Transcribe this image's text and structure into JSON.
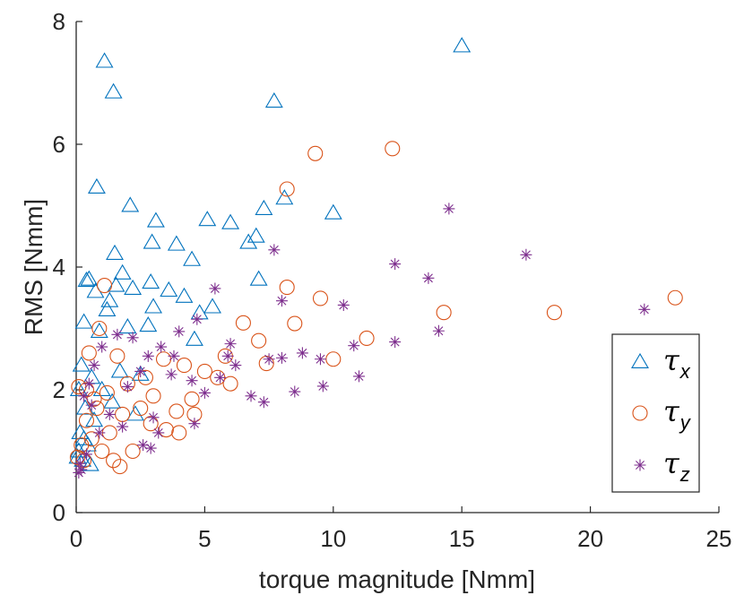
{
  "chart_data": {
    "type": "scatter",
    "title": "",
    "xlabel": "torque magnitude [Nmm]",
    "ylabel": "RMS [Nmm]",
    "xlim": [
      0,
      25
    ],
    "ylim": [
      0,
      8
    ],
    "xticks": [
      0,
      5,
      10,
      15,
      20,
      25
    ],
    "yticks": [
      0,
      2,
      4,
      6,
      8
    ],
    "xtick_labels": [
      "0",
      "5",
      "10",
      "15",
      "20",
      "25"
    ],
    "ytick_labels": [
      "0",
      "2",
      "4",
      "6",
      "8"
    ],
    "grid": false,
    "legend_position": "bottom-right",
    "series": [
      {
        "name": "τx",
        "symbol": "τ",
        "subscript": "x",
        "marker": "triangle",
        "color": "#0072BD",
        "points": [
          [
            15.0,
            7.6
          ],
          [
            1.1,
            7.35
          ],
          [
            1.45,
            6.85
          ],
          [
            7.7,
            6.7
          ],
          [
            0.8,
            5.3
          ],
          [
            2.1,
            5.0
          ],
          [
            8.1,
            5.12
          ],
          [
            10.0,
            4.88
          ],
          [
            7.3,
            4.95
          ],
          [
            3.1,
            4.75
          ],
          [
            5.1,
            4.77
          ],
          [
            6.0,
            4.72
          ],
          [
            7.0,
            4.5
          ],
          [
            6.7,
            4.4
          ],
          [
            2.95,
            4.4
          ],
          [
            3.9,
            4.37
          ],
          [
            1.5,
            4.22
          ],
          [
            4.5,
            4.12
          ],
          [
            1.8,
            3.9
          ],
          [
            0.5,
            3.8
          ],
          [
            0.4,
            3.78
          ],
          [
            2.9,
            3.75
          ],
          [
            1.55,
            3.7
          ],
          [
            2.2,
            3.65
          ],
          [
            7.1,
            3.8
          ],
          [
            3.6,
            3.62
          ],
          [
            0.75,
            3.6
          ],
          [
            1.3,
            3.45
          ],
          [
            4.2,
            3.52
          ],
          [
            3.0,
            3.35
          ],
          [
            5.3,
            3.35
          ],
          [
            4.8,
            3.25
          ],
          [
            1.2,
            3.3
          ],
          [
            0.3,
            3.1
          ],
          [
            2.8,
            3.05
          ],
          [
            2.0,
            3.02
          ],
          [
            0.9,
            2.95
          ],
          [
            4.6,
            2.82
          ],
          [
            0.2,
            2.4
          ],
          [
            0.6,
            2.2
          ],
          [
            1.7,
            2.3
          ],
          [
            2.5,
            2.25
          ],
          [
            1.0,
            2.0
          ],
          [
            0.1,
            2.0
          ],
          [
            0.35,
            1.7
          ],
          [
            0.7,
            1.5
          ],
          [
            0.15,
            1.3
          ],
          [
            0.45,
            1.1
          ],
          [
            0.05,
            0.9
          ],
          [
            0.25,
            0.85
          ],
          [
            0.55,
            0.78
          ],
          [
            0.1,
            1.0
          ],
          [
            0.3,
            1.2
          ],
          [
            1.4,
            1.8
          ],
          [
            2.3,
            1.6
          ]
        ]
      },
      {
        "name": "τy",
        "symbol": "τ",
        "subscript": "y",
        "marker": "circle",
        "color": "#D95319",
        "points": [
          [
            12.3,
            5.93
          ],
          [
            9.3,
            5.85
          ],
          [
            8.2,
            5.27
          ],
          [
            8.2,
            3.67
          ],
          [
            9.5,
            3.49
          ],
          [
            14.3,
            3.26
          ],
          [
            18.6,
            3.26
          ],
          [
            23.3,
            3.5
          ],
          [
            8.5,
            3.08
          ],
          [
            6.5,
            3.09
          ],
          [
            11.3,
            2.84
          ],
          [
            10.0,
            2.5
          ],
          [
            7.4,
            2.43
          ],
          [
            7.1,
            2.8
          ],
          [
            5.8,
            2.55
          ],
          [
            1.1,
            3.7
          ],
          [
            0.9,
            3.0
          ],
          [
            0.5,
            2.6
          ],
          [
            1.6,
            2.55
          ],
          [
            3.4,
            2.5
          ],
          [
            4.2,
            2.4
          ],
          [
            5.0,
            2.3
          ],
          [
            6.0,
            2.1
          ],
          [
            2.7,
            2.2
          ],
          [
            2.0,
            2.1
          ],
          [
            4.5,
            1.85
          ],
          [
            3.0,
            1.9
          ],
          [
            1.2,
            1.95
          ],
          [
            0.1,
            2.05
          ],
          [
            0.4,
            2.0
          ],
          [
            2.5,
            1.7
          ],
          [
            3.9,
            1.65
          ],
          [
            1.8,
            1.6
          ],
          [
            0.8,
            1.7
          ],
          [
            4.6,
            1.6
          ],
          [
            2.9,
            1.45
          ],
          [
            3.5,
            1.35
          ],
          [
            4.0,
            1.3
          ],
          [
            1.3,
            1.3
          ],
          [
            0.6,
            1.2
          ],
          [
            0.2,
            1.1
          ],
          [
            2.2,
            1.0
          ],
          [
            1.0,
            1.0
          ],
          [
            1.7,
            0.75
          ],
          [
            1.45,
            0.85
          ],
          [
            0.3,
            0.85
          ],
          [
            0.05,
            0.9
          ],
          [
            0.4,
            1.5
          ],
          [
            0.7,
            1.85
          ],
          [
            5.5,
            2.2
          ]
        ]
      },
      {
        "name": "τz",
        "symbol": "τ",
        "subscript": "z",
        "marker": "star",
        "color": "#7E2F8E",
        "points": [
          [
            14.5,
            4.95
          ],
          [
            17.5,
            4.2
          ],
          [
            12.4,
            4.05
          ],
          [
            13.7,
            3.82
          ],
          [
            5.4,
            3.65
          ],
          [
            10.4,
            3.38
          ],
          [
            22.1,
            3.31
          ],
          [
            7.7,
            4.28
          ],
          [
            8.0,
            3.45
          ],
          [
            14.1,
            2.96
          ],
          [
            12.4,
            2.78
          ],
          [
            10.8,
            2.72
          ],
          [
            8.8,
            2.6
          ],
          [
            9.5,
            2.5
          ],
          [
            8.0,
            2.52
          ],
          [
            11.0,
            2.22
          ],
          [
            9.6,
            2.06
          ],
          [
            8.5,
            1.97
          ],
          [
            7.3,
            1.8
          ],
          [
            6.8,
            1.9
          ],
          [
            6.2,
            2.4
          ],
          [
            5.6,
            2.2
          ],
          [
            6.0,
            2.75
          ],
          [
            4.7,
            3.15
          ],
          [
            4.0,
            2.95
          ],
          [
            3.3,
            2.7
          ],
          [
            2.8,
            2.55
          ],
          [
            2.2,
            2.85
          ],
          [
            1.6,
            2.9
          ],
          [
            1.0,
            2.7
          ],
          [
            0.7,
            2.4
          ],
          [
            0.5,
            2.1
          ],
          [
            0.3,
            1.9
          ],
          [
            2.5,
            2.3
          ],
          [
            3.7,
            2.25
          ],
          [
            4.5,
            2.15
          ],
          [
            5.0,
            1.95
          ],
          [
            3.0,
            1.55
          ],
          [
            4.6,
            1.45
          ],
          [
            3.2,
            1.3
          ],
          [
            2.6,
            1.1
          ],
          [
            2.9,
            1.05
          ],
          [
            1.8,
            1.4
          ],
          [
            1.3,
            1.6
          ],
          [
            0.9,
            1.3
          ],
          [
            0.2,
            0.7
          ],
          [
            0.1,
            0.65
          ],
          [
            0.15,
            0.8
          ],
          [
            0.4,
            0.95
          ],
          [
            0.6,
            1.75
          ],
          [
            2.0,
            2.05
          ],
          [
            3.8,
            2.55
          ],
          [
            5.9,
            2.55
          ],
          [
            7.5,
            2.5
          ]
        ]
      }
    ]
  }
}
